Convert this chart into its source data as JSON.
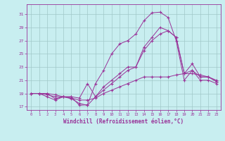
{
  "title": "",
  "xlabel": "Windchill (Refroidissement éolien,°C)",
  "ylabel": "",
  "bg_color": "#c8eef0",
  "grid_color": "#a0c8c8",
  "line_color": "#993399",
  "xlim": [
    -0.5,
    23.5
  ],
  "ylim": [
    16.5,
    32.5
  ],
  "yticks": [
    17,
    19,
    21,
    23,
    25,
    27,
    29,
    31
  ],
  "xticks": [
    0,
    1,
    2,
    3,
    4,
    5,
    6,
    7,
    8,
    9,
    10,
    11,
    12,
    13,
    14,
    15,
    16,
    17,
    18,
    19,
    20,
    21,
    22,
    23
  ],
  "lines": [
    [
      19.0,
      19.0,
      18.5,
      18.0,
      18.5,
      18.5,
      17.2,
      17.3,
      20.5,
      22.5,
      25.0,
      26.5,
      27.0,
      28.0,
      30.0,
      31.2,
      31.3,
      30.5,
      27.0,
      21.0,
      22.5,
      21.0,
      21.0,
      20.5
    ],
    [
      19.0,
      19.0,
      18.8,
      18.5,
      18.5,
      18.3,
      18.0,
      18.0,
      18.3,
      19.0,
      19.5,
      20.0,
      20.5,
      21.0,
      21.5,
      21.5,
      21.5,
      21.5,
      21.8,
      22.0,
      22.0,
      21.8,
      21.5,
      21.0
    ],
    [
      19.0,
      19.0,
      19.0,
      18.8,
      18.5,
      18.5,
      18.3,
      20.5,
      18.5,
      19.5,
      20.5,
      21.5,
      22.5,
      23.0,
      25.5,
      27.0,
      28.0,
      28.5,
      27.5,
      22.0,
      22.5,
      21.5,
      21.5,
      20.8
    ],
    [
      19.0,
      19.0,
      19.0,
      18.2,
      18.5,
      18.2,
      17.5,
      17.2,
      18.5,
      20.0,
      21.0,
      22.0,
      23.0,
      23.0,
      26.0,
      27.5,
      29.0,
      28.5,
      27.5,
      22.0,
      23.5,
      21.5,
      21.5,
      20.8
    ]
  ]
}
